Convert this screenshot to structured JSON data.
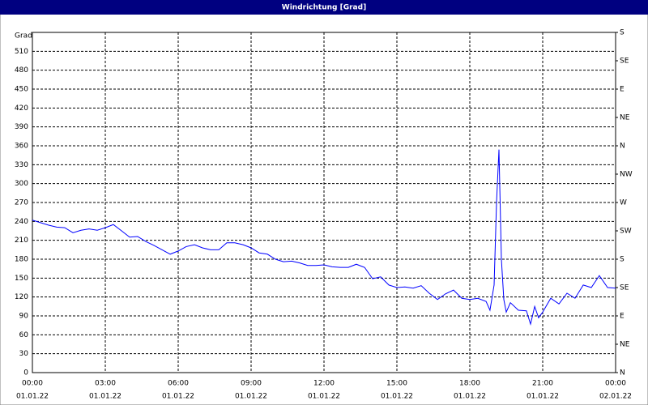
{
  "chart_data": {
    "type": "line",
    "title": "Windrichtung [Grad]",
    "y_label": "Grad",
    "color": "#0000ff",
    "grid": true,
    "x": [
      0,
      0.33,
      0.67,
      1,
      1.33,
      1.67,
      2,
      2.33,
      2.67,
      3,
      3.33,
      3.67,
      4,
      4.33,
      4.67,
      5,
      5.33,
      5.67,
      6,
      6.33,
      6.67,
      7,
      7.33,
      7.67,
      8,
      8.33,
      8.67,
      9,
      9.33,
      9.67,
      10,
      10.33,
      10.67,
      11,
      11.33,
      11.67,
      12,
      12.33,
      12.67,
      13,
      13.33,
      13.67,
      14,
      14.33,
      14.67,
      15,
      15.33,
      15.67,
      16,
      16.33,
      16.67,
      17,
      17.33,
      17.67,
      18,
      18.33,
      18.67,
      18.83,
      19,
      19.1,
      19.2,
      19.3,
      19.4,
      19.5,
      19.67,
      20,
      20.33,
      20.5,
      20.67,
      20.83,
      21,
      21.33,
      21.67,
      22,
      22.33,
      22.67,
      23,
      23.33,
      23.67,
      24
    ],
    "values": [
      242,
      238,
      234,
      231,
      230,
      222,
      226,
      228,
      226,
      230,
      235,
      225,
      215,
      216,
      208,
      202,
      195,
      188,
      193,
      200,
      203,
      198,
      195,
      195,
      206,
      206,
      203,
      198,
      190,
      188,
      180,
      176,
      177,
      174,
      170,
      170,
      171,
      168,
      167,
      167,
      172,
      167,
      149,
      152,
      139,
      135,
      136,
      134,
      138,
      126,
      116,
      125,
      131,
      118,
      116,
      118,
      113,
      99,
      139,
      270,
      354,
      180,
      116,
      96,
      111,
      99,
      98,
      77,
      105,
      87,
      96,
      118,
      109,
      126,
      118,
      139,
      135,
      154,
      135,
      134
    ],
    "xlim": [
      0,
      24
    ],
    "xticks": [
      {
        "value": 0,
        "label": "00:00",
        "date": "01.01.22"
      },
      {
        "value": 3,
        "label": "03:00",
        "date": "01.01.22"
      },
      {
        "value": 6,
        "label": "06:00",
        "date": "01.01.22"
      },
      {
        "value": 9,
        "label": "09:00",
        "date": "01.01.22"
      },
      {
        "value": 12,
        "label": "12:00",
        "date": "01.01.22"
      },
      {
        "value": 15,
        "label": "15:00",
        "date": "01.01.22"
      },
      {
        "value": 18,
        "label": "18:00",
        "date": "01.01.22"
      },
      {
        "value": 21,
        "label": "21:00",
        "date": "01.01.22"
      },
      {
        "value": 24,
        "label": "00:00",
        "date": "02.01.22"
      }
    ],
    "ylim": [
      0,
      540
    ],
    "yticks": [
      0,
      30,
      60,
      90,
      120,
      150,
      180,
      210,
      240,
      270,
      300,
      330,
      360,
      390,
      420,
      450,
      480,
      510
    ],
    "y2lim": [
      0,
      540
    ],
    "y2ticks": [
      {
        "value": 0,
        "label": "N"
      },
      {
        "value": 45,
        "label": "NE"
      },
      {
        "value": 90,
        "label": "E"
      },
      {
        "value": 135,
        "label": "SE"
      },
      {
        "value": 180,
        "label": "S"
      },
      {
        "value": 225,
        "label": "SW"
      },
      {
        "value": 270,
        "label": "W"
      },
      {
        "value": 315,
        "label": "NW"
      },
      {
        "value": 360,
        "label": "N"
      },
      {
        "value": 405,
        "label": "NE"
      },
      {
        "value": 450,
        "label": "E"
      },
      {
        "value": 495,
        "label": "SE"
      },
      {
        "value": 540,
        "label": "S"
      }
    ]
  }
}
